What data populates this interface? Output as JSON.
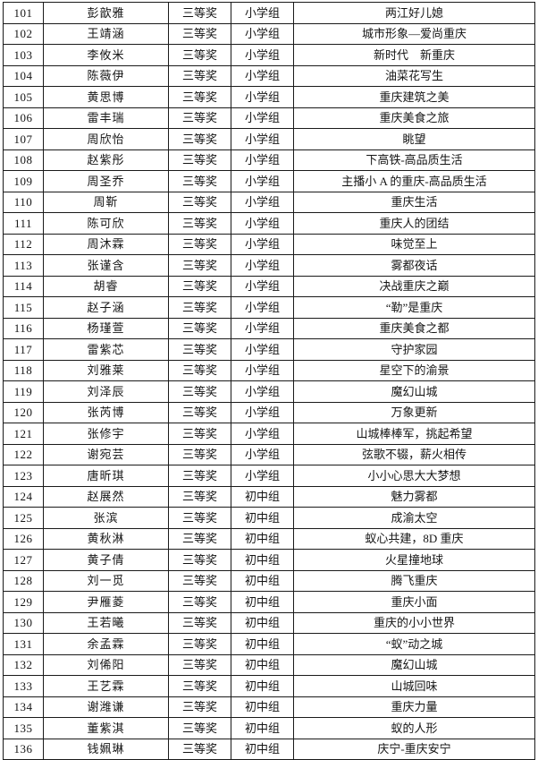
{
  "table": {
    "award_label_common": "三等奖",
    "groups_seen": [
      "小学组",
      "初中组"
    ],
    "colors": {
      "page_background": "#ffffff",
      "border": "#1a1a1a",
      "text": "#151515"
    },
    "rows": [
      {
        "no": "101",
        "name": "彭歆雅",
        "award": "三等奖",
        "group": "小学组",
        "title": "两江好儿媳"
      },
      {
        "no": "102",
        "name": "王靖涵",
        "award": "三等奖",
        "group": "小学组",
        "title": "城市形象—爱尚重庆"
      },
      {
        "no": "103",
        "name": "李攸米",
        "award": "三等奖",
        "group": "小学组",
        "title": "新时代　新重庆"
      },
      {
        "no": "104",
        "name": "陈薇伊",
        "award": "三等奖",
        "group": "小学组",
        "title": "油菜花写生"
      },
      {
        "no": "105",
        "name": "黄思博",
        "award": "三等奖",
        "group": "小学组",
        "title": "重庆建筑之美"
      },
      {
        "no": "106",
        "name": "雷丰瑞",
        "award": "三等奖",
        "group": "小学组",
        "title": "重庆美食之旅"
      },
      {
        "no": "107",
        "name": "周欣怡",
        "award": "三等奖",
        "group": "小学组",
        "title": "眺望"
      },
      {
        "no": "108",
        "name": "赵紫彤",
        "award": "三等奖",
        "group": "小学组",
        "title": "下高铁-高品质生活"
      },
      {
        "no": "109",
        "name": "周圣乔",
        "award": "三等奖",
        "group": "小学组",
        "title": "主播小 A 的重庆-高品质生活"
      },
      {
        "no": "110",
        "name": "周靳",
        "award": "三等奖",
        "group": "小学组",
        "title": "重庆生活"
      },
      {
        "no": "111",
        "name": "陈可欣",
        "award": "三等奖",
        "group": "小学组",
        "title": "重庆人的团结"
      },
      {
        "no": "112",
        "name": "周沐霖",
        "award": "三等奖",
        "group": "小学组",
        "title": "味觉至上"
      },
      {
        "no": "113",
        "name": "张谨含",
        "award": "三等奖",
        "group": "小学组",
        "title": "雾都夜话"
      },
      {
        "no": "114",
        "name": "胡睿",
        "award": "三等奖",
        "group": "小学组",
        "title": "决战重庆之巅"
      },
      {
        "no": "115",
        "name": "赵子涵",
        "award": "三等奖",
        "group": "小学组",
        "title": "“勒”是重庆"
      },
      {
        "no": "116",
        "name": "杨瑾萱",
        "award": "三等奖",
        "group": "小学组",
        "title": "重庆美食之都"
      },
      {
        "no": "117",
        "name": "雷紫芯",
        "award": "三等奖",
        "group": "小学组",
        "title": "守护家园"
      },
      {
        "no": "118",
        "name": "刘雅莱",
        "award": "三等奖",
        "group": "小学组",
        "title": "星空下的渝景"
      },
      {
        "no": "119",
        "name": "刘泽辰",
        "award": "三等奖",
        "group": "小学组",
        "title": "魔幻山城"
      },
      {
        "no": "120",
        "name": "张芮博",
        "award": "三等奖",
        "group": "小学组",
        "title": "万象更新"
      },
      {
        "no": "121",
        "name": "张修宇",
        "award": "三等奖",
        "group": "小学组",
        "title": "山城棒棒军，挑起希望"
      },
      {
        "no": "122",
        "name": "谢宛芸",
        "award": "三等奖",
        "group": "小学组",
        "title": "弦歌不辍，薪火相传"
      },
      {
        "no": "123",
        "name": "唐昕琪",
        "award": "三等奖",
        "group": "小学组",
        "title": "小小心思大大梦想"
      },
      {
        "no": "124",
        "name": "赵展然",
        "award": "三等奖",
        "group": "初中组",
        "title": "魅力雾都"
      },
      {
        "no": "125",
        "name": "张滨",
        "award": "三等奖",
        "group": "初中组",
        "title": "成渝太空"
      },
      {
        "no": "126",
        "name": "黄秋淋",
        "award": "三等奖",
        "group": "初中组",
        "title": "蚁心共建，8D 重庆"
      },
      {
        "no": "127",
        "name": "黄子倩",
        "award": "三等奖",
        "group": "初中组",
        "title": "火星撞地球"
      },
      {
        "no": "128",
        "name": "刘一觅",
        "award": "三等奖",
        "group": "初中组",
        "title": "腾飞重庆"
      },
      {
        "no": "129",
        "name": "尹雁菱",
        "award": "三等奖",
        "group": "初中组",
        "title": "重庆小面"
      },
      {
        "no": "130",
        "name": "王若曦",
        "award": "三等奖",
        "group": "初中组",
        "title": "重庆的小小世界"
      },
      {
        "no": "131",
        "name": "余孟霖",
        "award": "三等奖",
        "group": "初中组",
        "title": "“蚁”动之城"
      },
      {
        "no": "132",
        "name": "刘俙阳",
        "award": "三等奖",
        "group": "初中组",
        "title": "魔幻山城"
      },
      {
        "no": "133",
        "name": "王艺霖",
        "award": "三等奖",
        "group": "初中组",
        "title": "山城回味"
      },
      {
        "no": "134",
        "name": "谢潍谦",
        "award": "三等奖",
        "group": "初中组",
        "title": "重庆力量"
      },
      {
        "no": "135",
        "name": "董紫淇",
        "award": "三等奖",
        "group": "初中组",
        "title": "蚁的人形"
      },
      {
        "no": "136",
        "name": "钱姵琳",
        "award": "三等奖",
        "group": "初中组",
        "title": "庆宁-重庆安宁"
      }
    ]
  }
}
